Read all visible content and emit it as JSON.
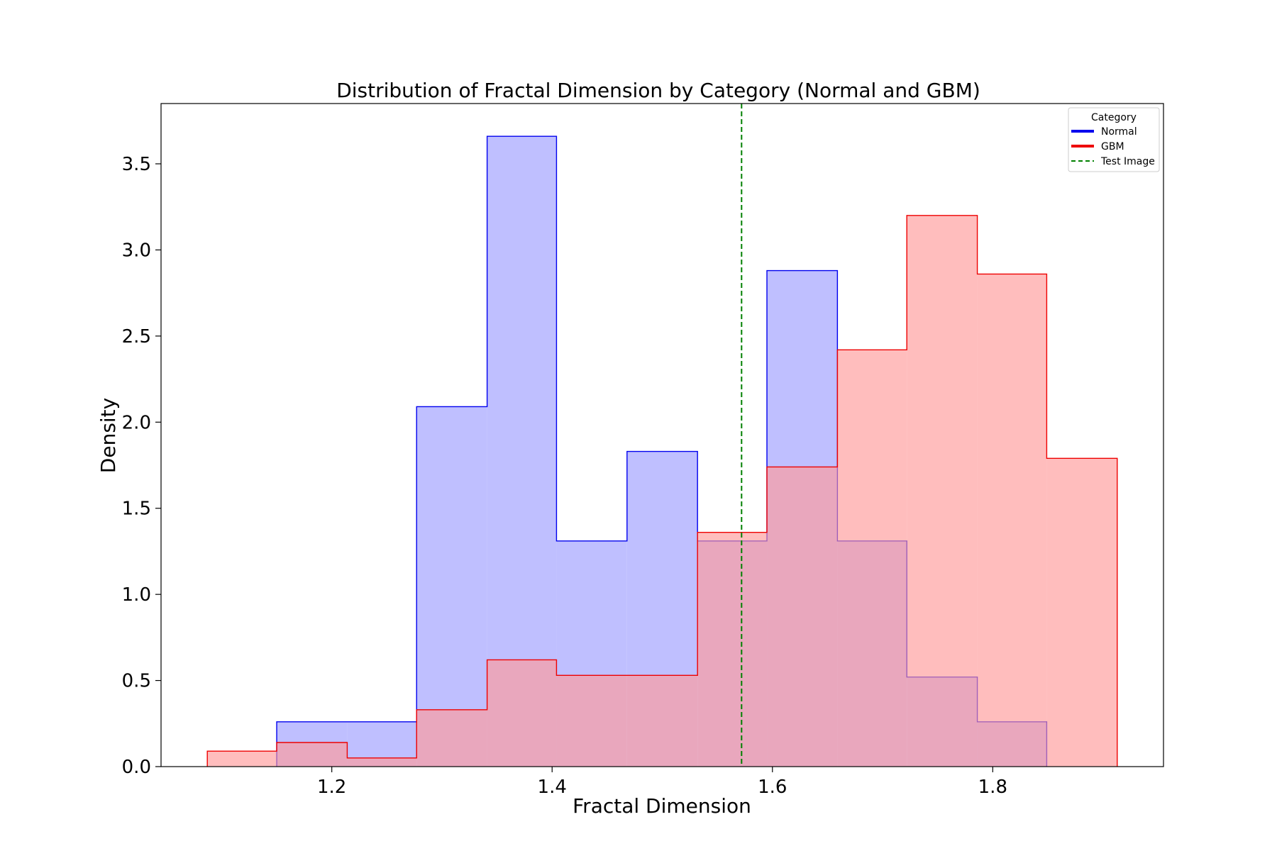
{
  "chart_data": {
    "type": "histogram",
    "title": "Distribution of Fractal Dimension by Category (Normal and GBM)",
    "xlabel": "Fractal Dimension",
    "ylabel": "Density",
    "xlim": [
      1.045,
      1.955
    ],
    "ylim": [
      0,
      3.85
    ],
    "xticks": [
      1.2,
      1.4,
      1.6,
      1.8
    ],
    "yticks": [
      0.0,
      0.5,
      1.0,
      1.5,
      2.0,
      2.5,
      3.0,
      3.5
    ],
    "xtick_labels": [
      "1.2",
      "1.4",
      "1.6",
      "1.8"
    ],
    "ytick_labels": [
      "0.0",
      "0.5",
      "1.0",
      "1.5",
      "2.0",
      "2.5",
      "3.0",
      "3.5"
    ],
    "grid": false,
    "legend": {
      "title": "Category",
      "placement": "top-right",
      "entries": [
        "Normal",
        "GBM",
        "Test Image"
      ]
    },
    "series": [
      {
        "name": "Normal",
        "edge_color": "#0000ee",
        "fill_color": "#bfbfff",
        "bin_edges": [
          1.15,
          1.214,
          1.277,
          1.341,
          1.404,
          1.468,
          1.532,
          1.595,
          1.659,
          1.722,
          1.786,
          1.849
        ],
        "values": [
          0.26,
          0.26,
          2.09,
          3.66,
          1.31,
          1.83,
          1.31,
          2.88,
          1.31,
          0.52,
          0.26
        ]
      },
      {
        "name": "GBM",
        "edge_color": "#ee0000",
        "fill_color": "#ff9999",
        "bin_edges": [
          1.087,
          1.15,
          1.214,
          1.277,
          1.341,
          1.404,
          1.468,
          1.532,
          1.595,
          1.659,
          1.722,
          1.786,
          1.849,
          1.913
        ],
        "values": [
          0.09,
          0.14,
          0.05,
          0.33,
          0.62,
          0.53,
          0.53,
          1.36,
          1.74,
          2.42,
          3.2,
          2.86,
          1.79
        ]
      }
    ],
    "reference_lines": [
      {
        "name": "Test Image",
        "x": 1.572,
        "color": "#008000",
        "style": "dashed"
      }
    ]
  }
}
